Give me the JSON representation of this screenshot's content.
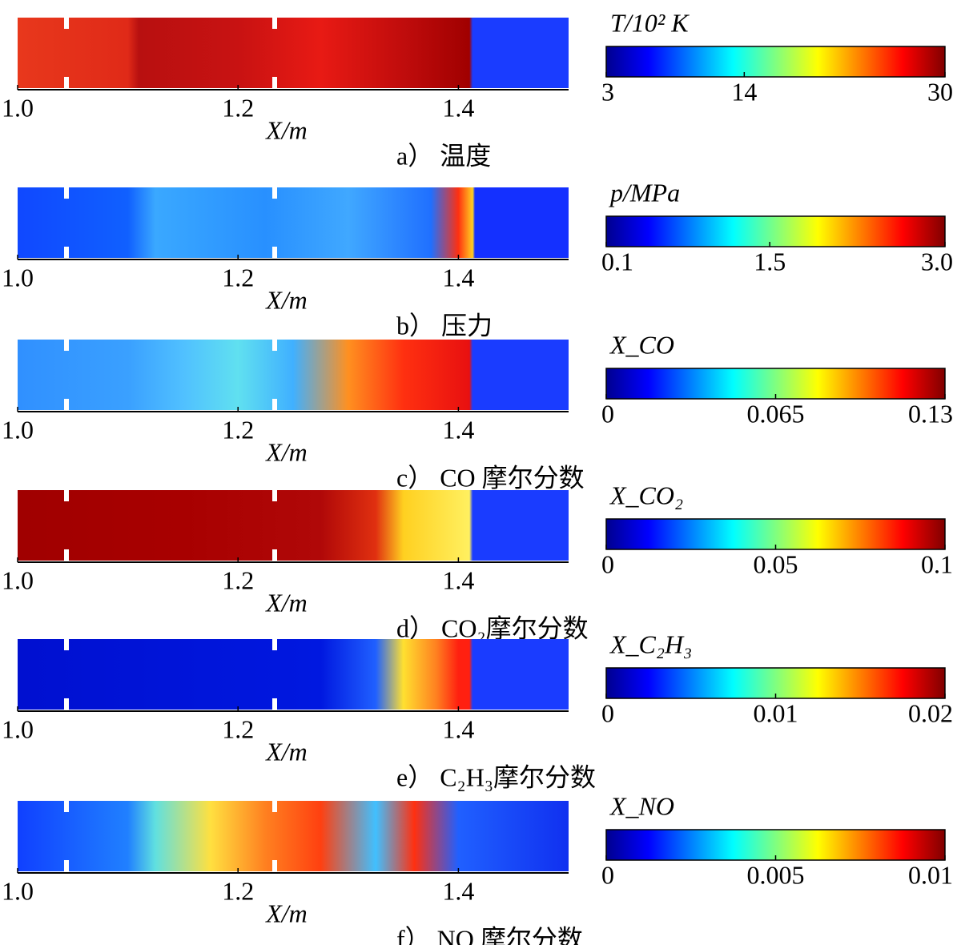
{
  "panels": [
    {
      "caption": "a） 温度",
      "x_label": "X/m",
      "xlim": [
        1.0,
        1.5
      ],
      "xticks": [
        {
          "value": 1.0,
          "label": "1.0"
        },
        1.2,
        1.4
      ],
      "colorbar": {
        "label": "T/10² K",
        "lim": [
          3,
          30
        ],
        "ticks": [
          3,
          14,
          30
        ]
      }
    },
    {
      "caption": "b） 压力",
      "x_label": "X/m",
      "xlim": [
        1.0,
        1.5
      ],
      "xticks": [
        {
          "value": 1.0,
          "label": "1.0"
        },
        1.2,
        1.4
      ],
      "colorbar": {
        "label": "p/MPa",
        "lim": [
          0.1,
          3.0
        ],
        "ticks": [
          0.1,
          1.5,
          {
            "value": 3.0,
            "label": "3.0"
          }
        ]
      }
    },
    {
      "caption": "c） CO 摩尔分数",
      "x_label": "X/m",
      "xlim": [
        1.0,
        1.5
      ],
      "xticks": [
        {
          "value": 1.0,
          "label": "1.0"
        },
        1.2,
        1.4
      ],
      "colorbar": {
        "label": "X_CO",
        "lim": [
          0,
          0.13
        ],
        "ticks": [
          0,
          0.065,
          0.13
        ]
      }
    },
    {
      "caption": "d） CO₂摩尔分数",
      "x_label": "X/m",
      "xlim": [
        1.0,
        1.5
      ],
      "xticks": [
        {
          "value": 1.0,
          "label": "1.0"
        },
        1.2,
        1.4
      ],
      "colorbar": {
        "label": "X_CO₂",
        "lim": [
          0,
          0.1
        ],
        "ticks": [
          0,
          0.05,
          0.1
        ]
      }
    },
    {
      "caption": "e） C₂H₃摩尔分数",
      "x_label": "X/m",
      "xlim": [
        1.0,
        1.5
      ],
      "xticks": [
        {
          "value": 1.0,
          "label": "1.0"
        },
        1.2,
        1.4
      ],
      "colorbar": {
        "label": "X_C₂H₃",
        "lim": [
          0,
          0.02
        ],
        "ticks": [
          0,
          0.01,
          0.02
        ]
      }
    },
    {
      "caption": "f） NO 摩尔分数",
      "x_label": "X/m",
      "xlim": [
        1.0,
        1.5
      ],
      "xticks": [
        {
          "value": 1.0,
          "label": "1.0"
        },
        1.2,
        1.4
      ],
      "colorbar": {
        "label": "X_NO",
        "lim": [
          0,
          0.01
        ],
        "ticks": [
          0,
          0.005,
          0.01
        ]
      }
    }
  ]
}
